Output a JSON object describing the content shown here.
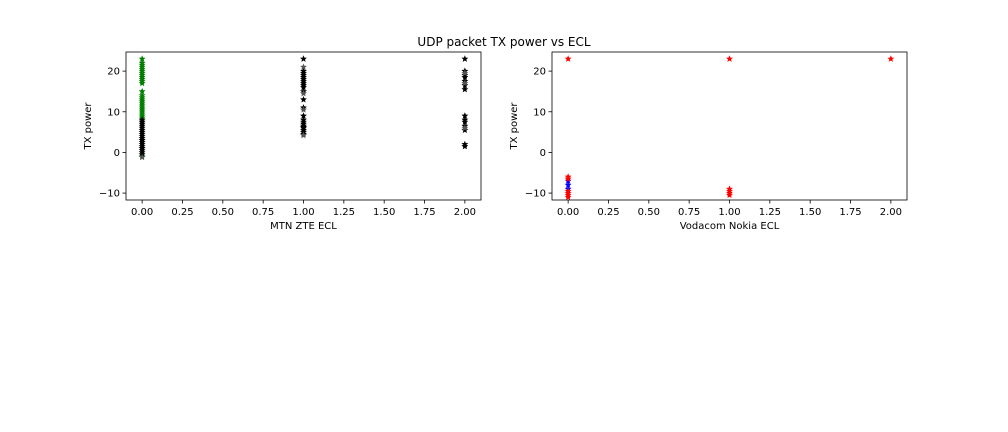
{
  "figure": {
    "suptitle": "UDP packet TX power vs ECL"
  },
  "chart_data": [
    {
      "type": "scatter",
      "title": "",
      "xlabel": "MTN ZTE ECL",
      "ylabel": "TX power",
      "xlim": [
        -0.1,
        2.1
      ],
      "ylim": [
        -11.7,
        24.7
      ],
      "xticks": [
        "0.00",
        "0.25",
        "0.50",
        "0.75",
        "1.00",
        "1.25",
        "1.50",
        "1.75",
        "2.00"
      ],
      "yticks": [
        "-10",
        "0",
        "10",
        "20"
      ],
      "marker": "star",
      "grid": false,
      "series": [
        {
          "color": "#008000",
          "x": [
            0,
            0,
            0,
            0,
            0,
            0,
            0,
            0,
            0,
            0,
            0,
            0,
            0,
            0,
            0,
            0,
            0,
            0,
            0,
            0,
            0,
            0,
            0,
            0,
            0,
            0,
            0,
            0,
            0,
            0
          ],
          "y": [
            23,
            22,
            21.5,
            21,
            20.5,
            20,
            19.5,
            19,
            18.5,
            18,
            17.5,
            17,
            15,
            14,
            13.5,
            13,
            12.5,
            12,
            11.5,
            11,
            10.5,
            10,
            9.5,
            9,
            8.5,
            8,
            7.5,
            3,
            1,
            -1
          ]
        },
        {
          "color": "#000000",
          "x": [
            0,
            0,
            0,
            0,
            0,
            0,
            0,
            0,
            0,
            0,
            0,
            0,
            0,
            0,
            0,
            0,
            0,
            0,
            1,
            1,
            1,
            1,
            1,
            1,
            1,
            1,
            1,
            1,
            1,
            1,
            1,
            1,
            1,
            1,
            1,
            1,
            1,
            1,
            1,
            1,
            1,
            2,
            2,
            2,
            2,
            2,
            2,
            2,
            2,
            2,
            2,
            2,
            2,
            2,
            2
          ],
          "y": [
            8,
            7.5,
            7,
            6.5,
            6,
            5.5,
            5,
            4.5,
            4,
            3.5,
            3,
            2.5,
            2,
            1.5,
            1,
            0.5,
            0,
            -0.5,
            23,
            20,
            19.5,
            19,
            18.5,
            18,
            17.5,
            17,
            16.5,
            16,
            15,
            13,
            11,
            9,
            8,
            7,
            6.5,
            6,
            5.5,
            5,
            4.5,
            7.5,
            6.2,
            23,
            20,
            19,
            18.5,
            17.5,
            16.5,
            15.5,
            9,
            8,
            7.5,
            6.5,
            5.5,
            2,
            1.5
          ]
        },
        {
          "color": "#555555",
          "x": [
            1,
            1,
            1,
            1,
            2,
            2,
            2,
            0
          ],
          "y": [
            21,
            14.5,
            10.5,
            4.2,
            19.5,
            17,
            6,
            -1.2
          ]
        }
      ]
    },
    {
      "type": "scatter",
      "title": "",
      "xlabel": "Vodacom Nokia ECL",
      "ylabel": "TX power",
      "xlim": [
        -0.1,
        2.1
      ],
      "ylim": [
        -11.7,
        24.7
      ],
      "xticks": [
        "0.00",
        "0.25",
        "0.50",
        "0.75",
        "1.00",
        "1.25",
        "1.50",
        "1.75",
        "2.00"
      ],
      "yticks": [
        "-10",
        "0",
        "10",
        "20"
      ],
      "marker": "star",
      "grid": false,
      "series": [
        {
          "color": "#0000ff",
          "x": [
            0,
            0,
            0
          ],
          "y": [
            -7,
            -8,
            -9
          ]
        },
        {
          "color": "#ff0000",
          "x": [
            0,
            0,
            0,
            0,
            0,
            0,
            0,
            1,
            1,
            1,
            1,
            1,
            2
          ],
          "y": [
            23,
            -6,
            -6.5,
            -9.5,
            -10,
            -10.5,
            -11,
            23,
            -9,
            -9.5,
            -10,
            -10.5,
            23
          ]
        }
      ]
    }
  ]
}
